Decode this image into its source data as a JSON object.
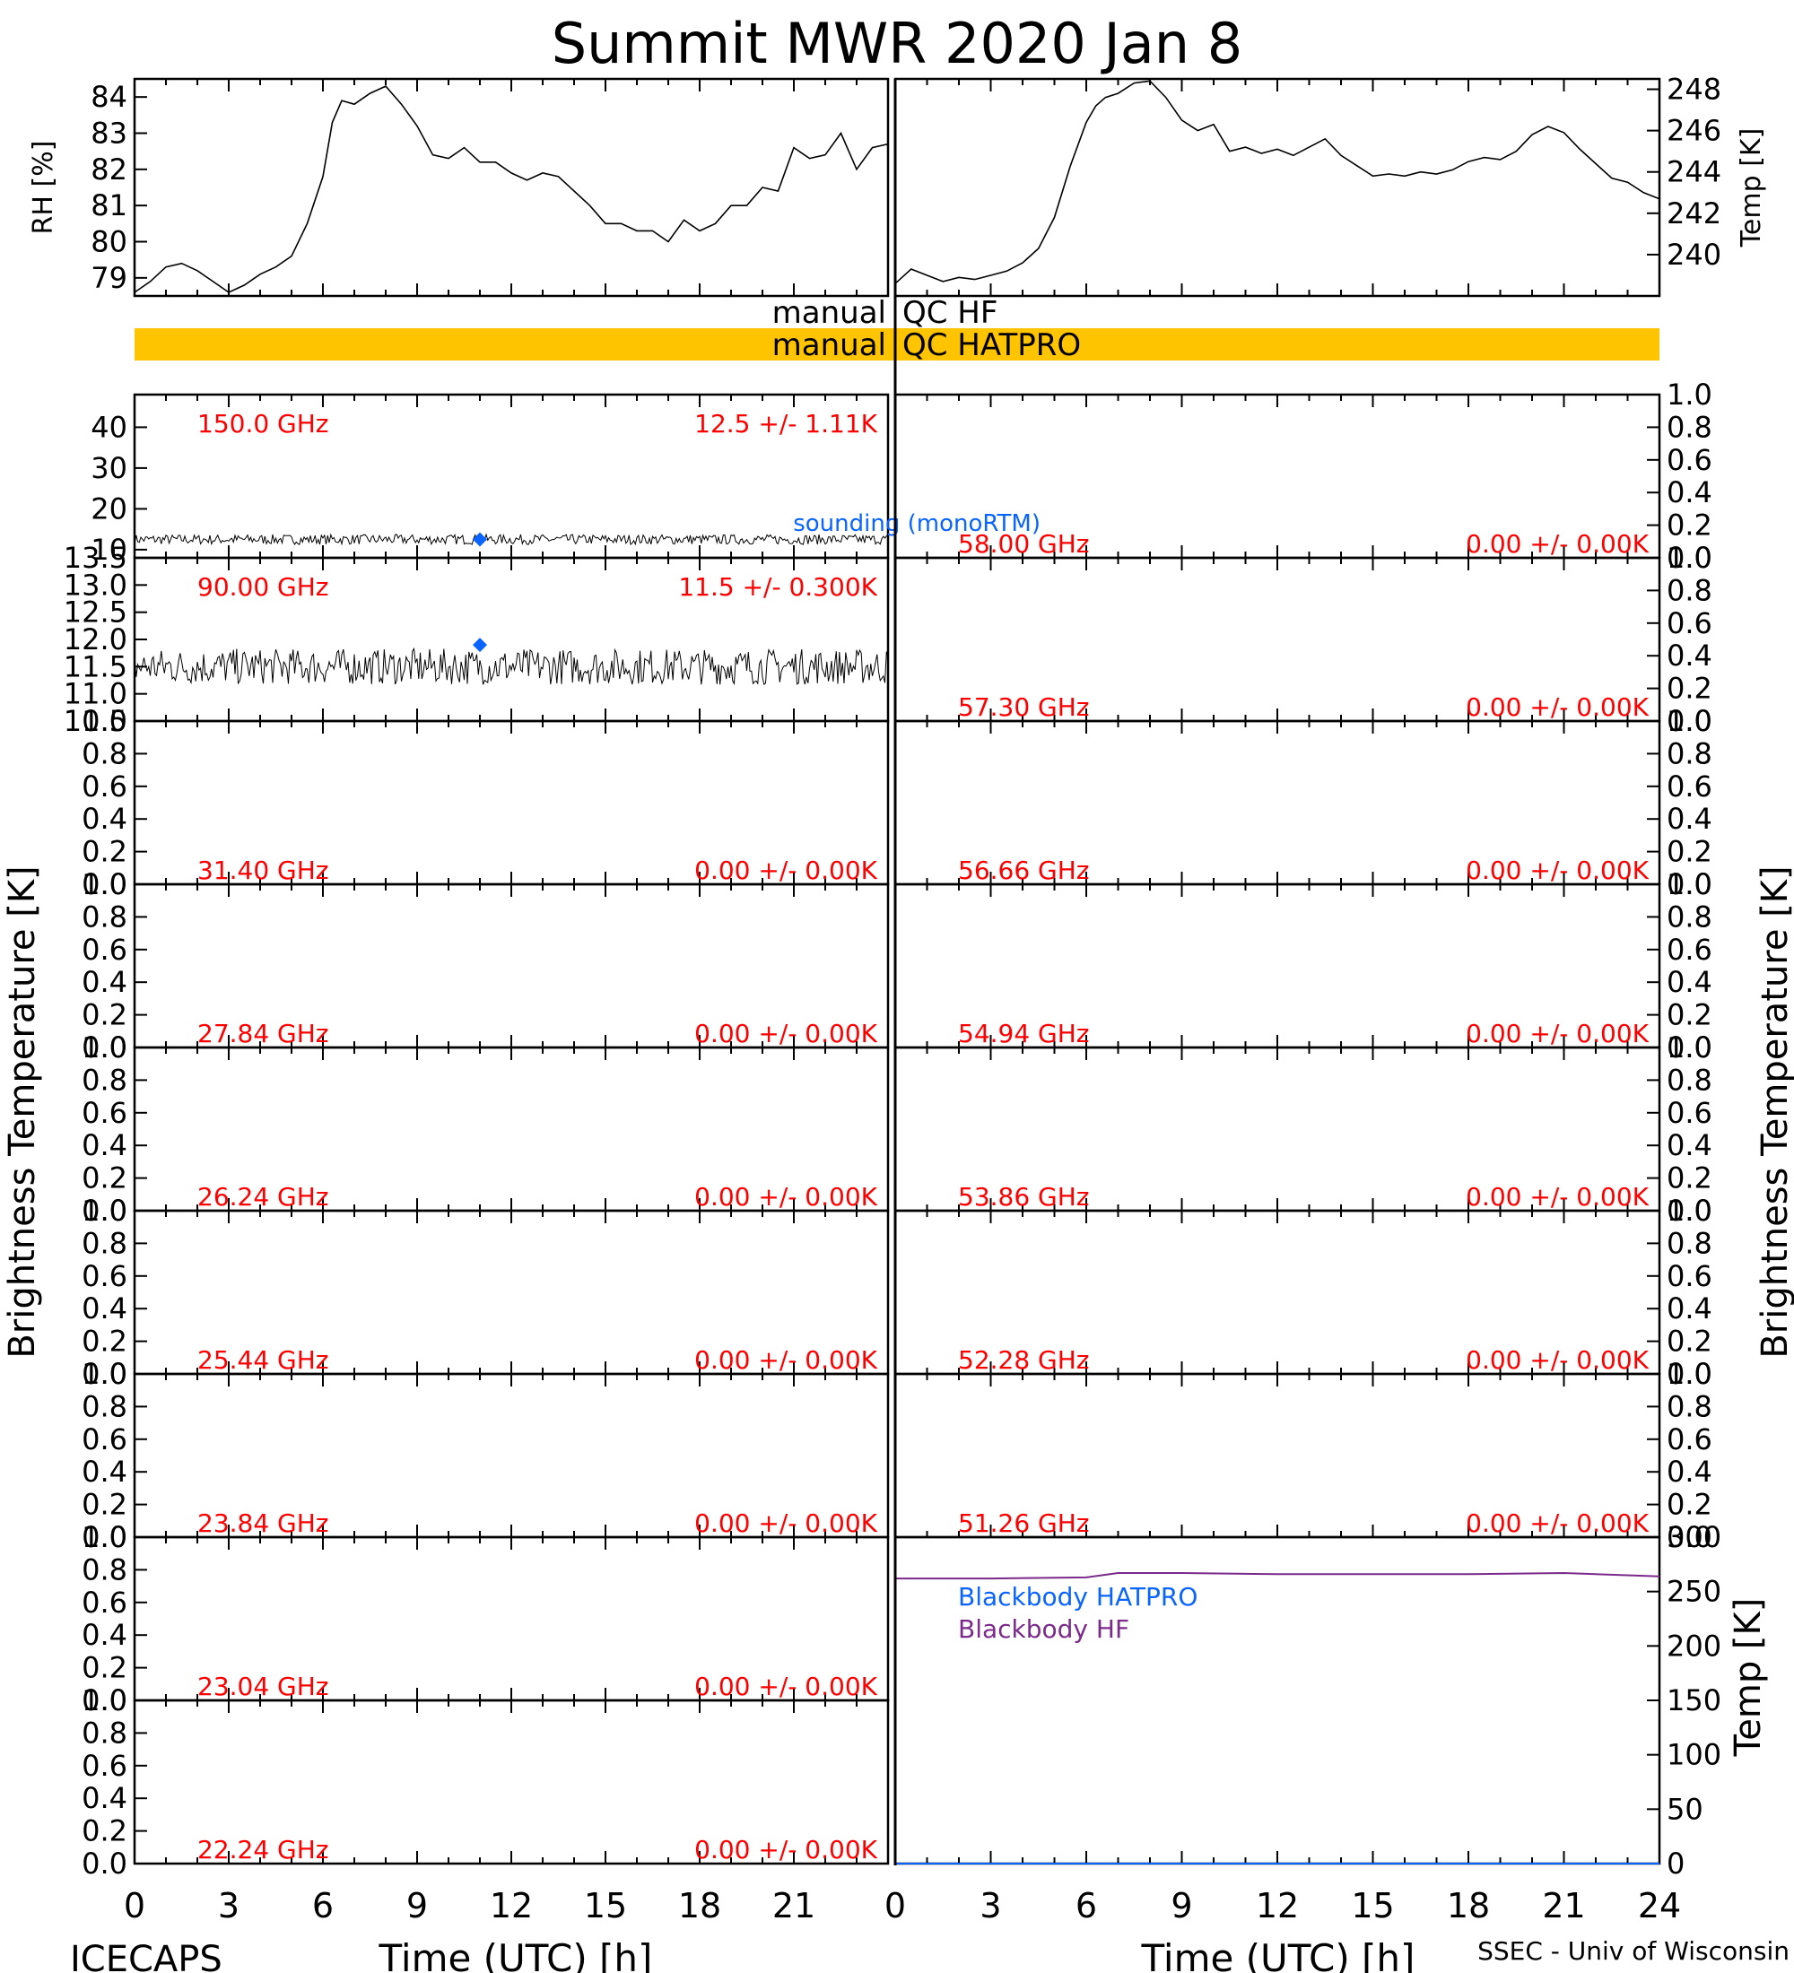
{
  "title": "Summit MWR 2020 Jan  8",
  "footer": {
    "left": "ICECAPS",
    "right": "SSEC - Univ of Wisconsin"
  },
  "axis_labels": {
    "bt_left": "Brightness Temperature [K]",
    "bt_right": "Brightness Temperature [K]",
    "time": "Time (UTC) [h]"
  },
  "qc": {
    "hf": "manual QC HF",
    "hatpro": "manual QC HATPRO",
    "hatpro_color": "#ffc400"
  },
  "colors": {
    "text_red": "#ff0000",
    "sounding_blue": "#0a64ff",
    "blackbody_hf": "#7b2a8b",
    "data_black": "#000000"
  },
  "chart_data": [
    {
      "type": "line",
      "panel": "rh",
      "ylabel": "RH [%]",
      "ylim": [
        78.5,
        84.5
      ],
      "yticks": [
        79,
        80,
        81,
        82,
        83,
        84
      ],
      "xlim": [
        0,
        24
      ],
      "xticks": [
        0,
        3,
        6,
        9,
        12,
        15,
        18,
        21
      ],
      "series": [
        {
          "x": [
            0,
            0.5,
            1,
            1.5,
            2,
            2.5,
            3,
            3.5,
            4,
            4.5,
            5,
            5.5,
            6,
            6.3,
            6.6,
            7,
            7.5,
            8,
            8.5,
            9,
            9.5,
            10,
            10.5,
            11,
            11.5,
            12,
            12.5,
            13,
            13.5,
            14,
            14.5,
            15,
            15.5,
            16,
            16.5,
            17,
            17.5,
            18,
            18.5,
            19,
            19.5,
            20,
            20.5,
            21,
            21.5,
            22,
            22.5,
            23,
            23.5,
            24
          ],
          "y": [
            78.6,
            78.9,
            79.3,
            79.4,
            79.2,
            78.9,
            78.6,
            78.8,
            79.1,
            79.3,
            79.6,
            80.5,
            81.8,
            83.3,
            83.9,
            83.8,
            84.1,
            84.3,
            83.8,
            83.2,
            82.4,
            82.3,
            82.6,
            82.2,
            82.2,
            81.9,
            81.7,
            81.9,
            81.8,
            81.4,
            81.0,
            80.5,
            80.5,
            80.3,
            80.3,
            80.0,
            80.6,
            80.3,
            80.5,
            81.0,
            81.0,
            81.5,
            81.4,
            82.6,
            82.3,
            82.4,
            83.0,
            82.0,
            82.6,
            82.7
          ]
        }
      ]
    },
    {
      "type": "line",
      "panel": "air_temp",
      "ylabel": "Temp [K]",
      "ylim": [
        238,
        248.5
      ],
      "yticks": [
        240,
        242,
        244,
        246,
        248
      ],
      "xlim": [
        0,
        24
      ],
      "xticks": [
        0,
        3,
        6,
        9,
        12,
        15,
        18,
        21,
        24
      ],
      "series": [
        {
          "x": [
            0,
            0.5,
            1,
            1.5,
            2,
            2.5,
            3,
            3.5,
            4,
            4.5,
            5,
            5.5,
            6,
            6.3,
            6.6,
            7,
            7.5,
            8,
            8.5,
            9,
            9.5,
            10,
            10.5,
            11,
            11.5,
            12,
            12.5,
            13,
            13.5,
            14,
            14.5,
            15,
            15.5,
            16,
            16.5,
            17,
            17.5,
            18,
            18.5,
            19,
            19.5,
            20,
            20.5,
            21,
            21.5,
            22,
            22.5,
            23,
            23.5,
            24
          ],
          "y": [
            238.6,
            239.3,
            239.0,
            238.7,
            238.9,
            238.8,
            239.0,
            239.2,
            239.6,
            240.3,
            241.8,
            244.3,
            246.4,
            247.2,
            247.6,
            247.8,
            248.3,
            248.4,
            247.6,
            246.5,
            246.0,
            246.3,
            245.0,
            245.2,
            244.9,
            245.1,
            244.8,
            245.2,
            245.6,
            244.8,
            244.3,
            243.8,
            243.9,
            243.8,
            244.0,
            243.9,
            244.1,
            244.5,
            244.7,
            244.6,
            245.0,
            245.8,
            246.2,
            245.9,
            245.1,
            244.4,
            243.7,
            243.5,
            243.0,
            242.7
          ]
        }
      ]
    },
    {
      "type": "line",
      "panel": "bt",
      "freq": "150.0 GHz",
      "stat": "12.5 +/-  1.11K",
      "ylim": [
        8,
        48
      ],
      "yticks": [
        10,
        20,
        30,
        40
      ],
      "ytick_labels": [
        "10",
        "20",
        "30",
        "40"
      ],
      "mean": 12.5,
      "std": 1.11,
      "sounding": {
        "x": 11,
        "y": 12.5
      },
      "annotation": "sounding (monoRTM)"
    },
    {
      "type": "line",
      "panel": "bt",
      "freq": "90.00 GHz",
      "stat": "11.5 +/- 0.300K",
      "ylim": [
        10.5,
        13.5
      ],
      "yticks": [
        10.5,
        11.0,
        11.5,
        12.0,
        12.5,
        13.0,
        13.5
      ],
      "ytick_labels": [
        "10.5",
        "11.0",
        "11.5",
        "12.0",
        "12.5",
        "13.0",
        "13.5"
      ],
      "mean": 11.5,
      "std": 0.3,
      "sounding": {
        "x": 11,
        "y": 11.9
      }
    },
    {
      "type": "line",
      "panel": "bt",
      "freq": "31.40 GHz",
      "stat": "0.00 +/-  0.00K",
      "ylim": [
        0,
        1
      ],
      "yticks": [
        0,
        0.2,
        0.4,
        0.6,
        0.8,
        1.0
      ],
      "ytick_labels": [
        "0.0",
        "0.2",
        "0.4",
        "0.6",
        "0.8",
        "1.0"
      ]
    },
    {
      "type": "line",
      "panel": "bt",
      "freq": "27.84 GHz",
      "stat": "0.00 +/-  0.00K",
      "ylim": [
        0,
        1
      ],
      "yticks": [
        0,
        0.2,
        0.4,
        0.6,
        0.8,
        1.0
      ],
      "ytick_labels": [
        "0.0",
        "0.2",
        "0.4",
        "0.6",
        "0.8",
        "1.0"
      ]
    },
    {
      "type": "line",
      "panel": "bt",
      "freq": "26.24 GHz",
      "stat": "0.00 +/-  0.00K",
      "ylim": [
        0,
        1
      ],
      "yticks": [
        0,
        0.2,
        0.4,
        0.6,
        0.8,
        1.0
      ],
      "ytick_labels": [
        "0.0",
        "0.2",
        "0.4",
        "0.6",
        "0.8",
        "1.0"
      ]
    },
    {
      "type": "line",
      "panel": "bt",
      "freq": "25.44 GHz",
      "stat": "0.00 +/-  0.00K",
      "ylim": [
        0,
        1
      ],
      "yticks": [
        0,
        0.2,
        0.4,
        0.6,
        0.8,
        1.0
      ],
      "ytick_labels": [
        "0.0",
        "0.2",
        "0.4",
        "0.6",
        "0.8",
        "1.0"
      ]
    },
    {
      "type": "line",
      "panel": "bt",
      "freq": "23.84 GHz",
      "stat": "0.00 +/-  0.00K",
      "ylim": [
        0,
        1
      ],
      "yticks": [
        0,
        0.2,
        0.4,
        0.6,
        0.8,
        1.0
      ],
      "ytick_labels": [
        "0.0",
        "0.2",
        "0.4",
        "0.6",
        "0.8",
        "1.0"
      ]
    },
    {
      "type": "line",
      "panel": "bt",
      "freq": "23.04 GHz",
      "stat": "0.00 +/-  0.00K",
      "ylim": [
        0,
        1
      ],
      "yticks": [
        0,
        0.2,
        0.4,
        0.6,
        0.8,
        1.0
      ],
      "ytick_labels": [
        "0.0",
        "0.2",
        "0.4",
        "0.6",
        "0.8",
        "1.0"
      ]
    },
    {
      "type": "line",
      "panel": "bt",
      "freq": "22.24 GHz",
      "stat": "0.00 +/-  0.00K",
      "ylim": [
        0,
        1
      ],
      "yticks": [
        0,
        0.2,
        0.4,
        0.6,
        0.8,
        1.0
      ],
      "ytick_labels": [
        "0.0",
        "0.2",
        "0.4",
        "0.6",
        "0.8",
        "1.0"
      ]
    },
    {
      "type": "line",
      "panel": "bt",
      "freq": "58.00 GHz",
      "stat": "0.00 +/-  0.00K",
      "ylim": [
        0,
        1
      ],
      "yticks": [
        0,
        0.2,
        0.4,
        0.6,
        0.8,
        1.0
      ],
      "ytick_labels": [
        "0.0",
        "0.2",
        "0.4",
        "0.6",
        "0.8",
        "1.0"
      ]
    },
    {
      "type": "line",
      "panel": "bt",
      "freq": "57.30 GHz",
      "stat": "0.00 +/-  0.00K",
      "ylim": [
        0,
        1
      ],
      "yticks": [
        0,
        0.2,
        0.4,
        0.6,
        0.8,
        1.0
      ],
      "ytick_labels": [
        "0.0",
        "0.2",
        "0.4",
        "0.6",
        "0.8",
        "1.0"
      ]
    },
    {
      "type": "line",
      "panel": "bt",
      "freq": "56.66 GHz",
      "stat": "0.00 +/-  0.00K",
      "ylim": [
        0,
        1
      ],
      "yticks": [
        0,
        0.2,
        0.4,
        0.6,
        0.8,
        1.0
      ],
      "ytick_labels": [
        "0.0",
        "0.2",
        "0.4",
        "0.6",
        "0.8",
        "1.0"
      ]
    },
    {
      "type": "line",
      "panel": "bt",
      "freq": "54.94 GHz",
      "stat": "0.00 +/-  0.00K",
      "ylim": [
        0,
        1
      ],
      "yticks": [
        0,
        0.2,
        0.4,
        0.6,
        0.8,
        1.0
      ],
      "ytick_labels": [
        "0.0",
        "0.2",
        "0.4",
        "0.6",
        "0.8",
        "1.0"
      ]
    },
    {
      "type": "line",
      "panel": "bt",
      "freq": "53.86 GHz",
      "stat": "0.00 +/-  0.00K",
      "ylim": [
        0,
        1
      ],
      "yticks": [
        0,
        0.2,
        0.4,
        0.6,
        0.8,
        1.0
      ],
      "ytick_labels": [
        "0.0",
        "0.2",
        "0.4",
        "0.6",
        "0.8",
        "1.0"
      ]
    },
    {
      "type": "line",
      "panel": "bt",
      "freq": "52.28 GHz",
      "stat": "0.00 +/-  0.00K",
      "ylim": [
        0,
        1
      ],
      "yticks": [
        0,
        0.2,
        0.4,
        0.6,
        0.8,
        1.0
      ],
      "ytick_labels": [
        "0.0",
        "0.2",
        "0.4",
        "0.6",
        "0.8",
        "1.0"
      ]
    },
    {
      "type": "line",
      "panel": "bt",
      "freq": "51.26 GHz",
      "stat": "0.00 +/-  0.00K",
      "ylim": [
        0,
        1
      ],
      "yticks": [
        0,
        0.2,
        0.4,
        0.6,
        0.8,
        1.0
      ],
      "ytick_labels": [
        "0.0",
        "0.2",
        "0.4",
        "0.6",
        "0.8",
        "1.0"
      ]
    },
    {
      "type": "line",
      "panel": "blackbody",
      "ylabel": "Temp [K]",
      "ylim": [
        0,
        300
      ],
      "yticks": [
        0,
        50,
        100,
        150,
        200,
        250,
        300
      ],
      "xlim": [
        0,
        24
      ],
      "xticks": [
        0,
        3,
        6,
        9,
        12,
        15,
        18,
        21,
        24
      ],
      "series": [
        {
          "name": "Blackbody HATPRO",
          "color": "#0a64ff",
          "x": [
            0,
            24
          ],
          "y": [
            0,
            0
          ]
        },
        {
          "name": "Blackbody HF",
          "color": "#7b2a8b",
          "x": [
            0,
            3,
            6,
            7,
            9,
            12,
            15,
            18,
            21,
            24
          ],
          "y": [
            262,
            262,
            263,
            267,
            267,
            266,
            266,
            266,
            267,
            264
          ]
        }
      ]
    }
  ]
}
